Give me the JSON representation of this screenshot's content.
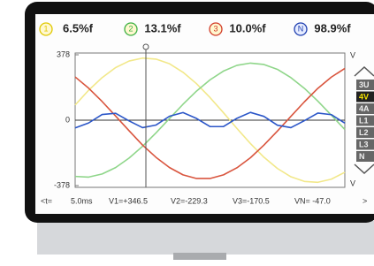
{
  "header": {
    "channels": [
      {
        "id": "1",
        "value": "6.5%f",
        "color": "#e0c800"
      },
      {
        "id": "2",
        "value": "13.1%f",
        "color": "#3cb043"
      },
      {
        "id": "3",
        "value": "10.0%f",
        "color": "#d23c28"
      },
      {
        "id": "N",
        "value": "98.9%f",
        "color": "#1f3fb0"
      }
    ]
  },
  "chart_data": {
    "type": "line",
    "categories": [
      null,
      null,
      null,
      null,
      null,
      null,
      null,
      null,
      null,
      null,
      null,
      null,
      null,
      null,
      null,
      null,
      null,
      null,
      null,
      null,
      null
    ],
    "series": [
      {
        "color": "#f2e88a",
        "values": [
          88,
          173,
          246,
          304,
          342,
          359,
          353,
          326,
          277,
          211,
          131,
          43,
          -48,
          -135,
          -214,
          -279,
          -327,
          -354,
          -359,
          -341,
          -301
        ]
      },
      {
        "color": "#8fd68a",
        "values": [
          -325,
          -329,
          -311,
          -274,
          -219,
          -151,
          -73,
          10,
          92,
          168,
          233,
          284,
          317,
          330,
          322,
          294,
          246,
          184,
          110,
          29,
          -54
        ]
      },
      {
        "color": "#d9553e",
        "values": [
          250,
          185,
          108,
          24,
          -61,
          -144,
          -215,
          -274,
          -316,
          -337,
          -337,
          -316,
          -275,
          -217,
          -144,
          -63,
          22,
          106,
          184,
          249,
          299
        ]
      },
      {
        "color": "#2b56c8",
        "values": [
          -45,
          -16,
          33,
          40,
          -4,
          -43,
          -28,
          23,
          44,
          10,
          -37,
          -37,
          11,
          45,
          22,
          -29,
          -43,
          -3,
          41,
          32,
          -17
        ]
      }
    ],
    "ylim": [
      -378,
      378
    ],
    "yticks": [
      -378,
      0,
      378
    ],
    "unit": "V"
  },
  "side_buttons": [
    {
      "label": "3U",
      "active": false
    },
    {
      "label": "4V",
      "active": true
    },
    {
      "label": "4A",
      "active": false
    },
    {
      "label": "L1",
      "active": false
    },
    {
      "label": "L2",
      "active": false
    },
    {
      "label": "L3",
      "active": false
    },
    {
      "label": "N",
      "active": false
    }
  ],
  "footer": {
    "prev": "<t=",
    "time": "5.0ms",
    "readings": [
      "V1=+346.5",
      "V2=-229.3",
      "V3=-170.5",
      "VN= -47.0"
    ],
    "next": ">"
  }
}
